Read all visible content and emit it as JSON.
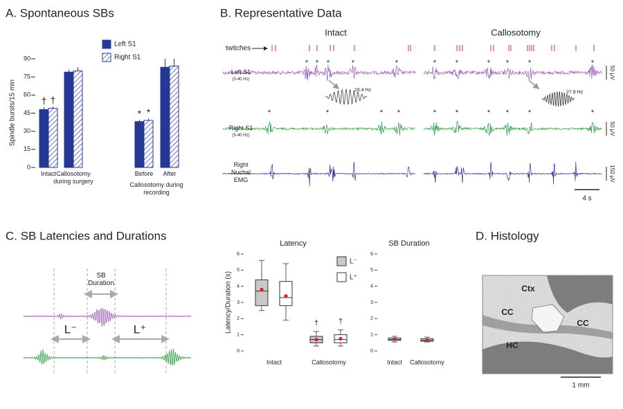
{
  "chart_data": [
    {
      "type": "bar",
      "title": "A. Spontaneous SBs",
      "ylabel": "Spindle bursts/15 min",
      "categories": [
        "Intact",
        "Callosotomy during surgery",
        "Before",
        "After"
      ],
      "group_label": "Callosotomy during recording",
      "series": [
        {
          "name": "Left S1",
          "color": "#263896",
          "values": [
            48,
            79,
            38,
            83
          ],
          "errors": [
            2,
            2,
            1.5,
            7
          ]
        },
        {
          "name": "Right S1",
          "color": "#263896",
          "pattern": "hatch",
          "values": [
            49,
            80,
            39,
            84
          ],
          "errors": [
            1.5,
            3,
            1.5,
            6
          ]
        }
      ],
      "ylim": [
        0,
        90
      ],
      "yticks": [
        0,
        15,
        30,
        45,
        60,
        75,
        90
      ],
      "annotations": [
        {
          "text": "†",
          "category": 0
        },
        {
          "text": "*",
          "category": 2
        }
      ]
    },
    {
      "type": "box",
      "title": "Latency",
      "ylabel": "Latency/Duration (s)",
      "categories": [
        "Intact",
        "Callosotomy"
      ],
      "series": [
        {
          "name": "L⁻",
          "color": "#c8c8c8",
          "low": [
            2.5,
            0.3
          ],
          "q1": [
            2.8,
            0.5
          ],
          "median": [
            3.7,
            0.7
          ],
          "q3": [
            4.4,
            0.9
          ],
          "high": [
            5.6,
            1.2
          ],
          "mean": [
            3.8,
            0.7
          ]
        },
        {
          "name": "L⁺",
          "color": "#ffffff",
          "low": [
            1.9,
            0.3
          ],
          "q1": [
            2.8,
            0.5
          ],
          "median": [
            3.3,
            0.7
          ],
          "q3": [
            4.3,
            1.0
          ],
          "high": [
            5.4,
            1.3
          ],
          "mean": [
            3.4,
            0.75
          ]
        }
      ],
      "mean_color": "#e02020",
      "ylim": [
        0,
        6
      ],
      "yticks": [
        0,
        1,
        2,
        3,
        4,
        5,
        6
      ],
      "legend": true,
      "annotations": [
        {
          "text": "†",
          "category": 1
        }
      ]
    },
    {
      "type": "box",
      "title": "SB Duration",
      "categories": [
        "Intact",
        "Callosotomy"
      ],
      "series": [
        {
          "color": "#d8d8d8",
          "low": [
            0.55,
            0.55
          ],
          "q1": [
            0.65,
            0.6
          ],
          "median": [
            0.7,
            0.65
          ],
          "q3": [
            0.8,
            0.75
          ],
          "high": [
            0.9,
            0.85
          ],
          "mean": [
            0.72,
            0.65
          ]
        }
      ],
      "mean_color": "#e02020",
      "ylim": [
        0,
        6
      ],
      "yticks": [
        0,
        1,
        2,
        3,
        4,
        5,
        6
      ],
      "legend": false
    }
  ],
  "panel_b": {
    "title": "B. Representative Data",
    "conditions": [
      "Intact",
      "Callosotomy"
    ],
    "twitches_label": "twitches",
    "traces": [
      {
        "label": "Left S1",
        "sublabel": "(5-40 Hz)",
        "scale": "50 µV",
        "color": "#9b5fb5"
      },
      {
        "label": "Right S1",
        "sublabel": "(5-40 Hz)",
        "scale": "50 µV",
        "color": "#2ea043"
      },
      {
        "label": "Right Nuchal EMG",
        "scale": "150 µV",
        "color": "#2b2f94"
      }
    ],
    "insets": [
      "16.4 Hz",
      "27.8 Hz"
    ],
    "event_marker": "*",
    "time_scale": "4 s"
  },
  "panel_c": {
    "title": "C. SB Latencies and Durations",
    "duration_label": "SB Duration",
    "l_minus": "L⁻",
    "l_plus": "L⁺"
  },
  "panel_d": {
    "title": "D. Histology",
    "labels": [
      "Ctx",
      "CC",
      "CC",
      "HC"
    ],
    "scale": "1 mm"
  }
}
